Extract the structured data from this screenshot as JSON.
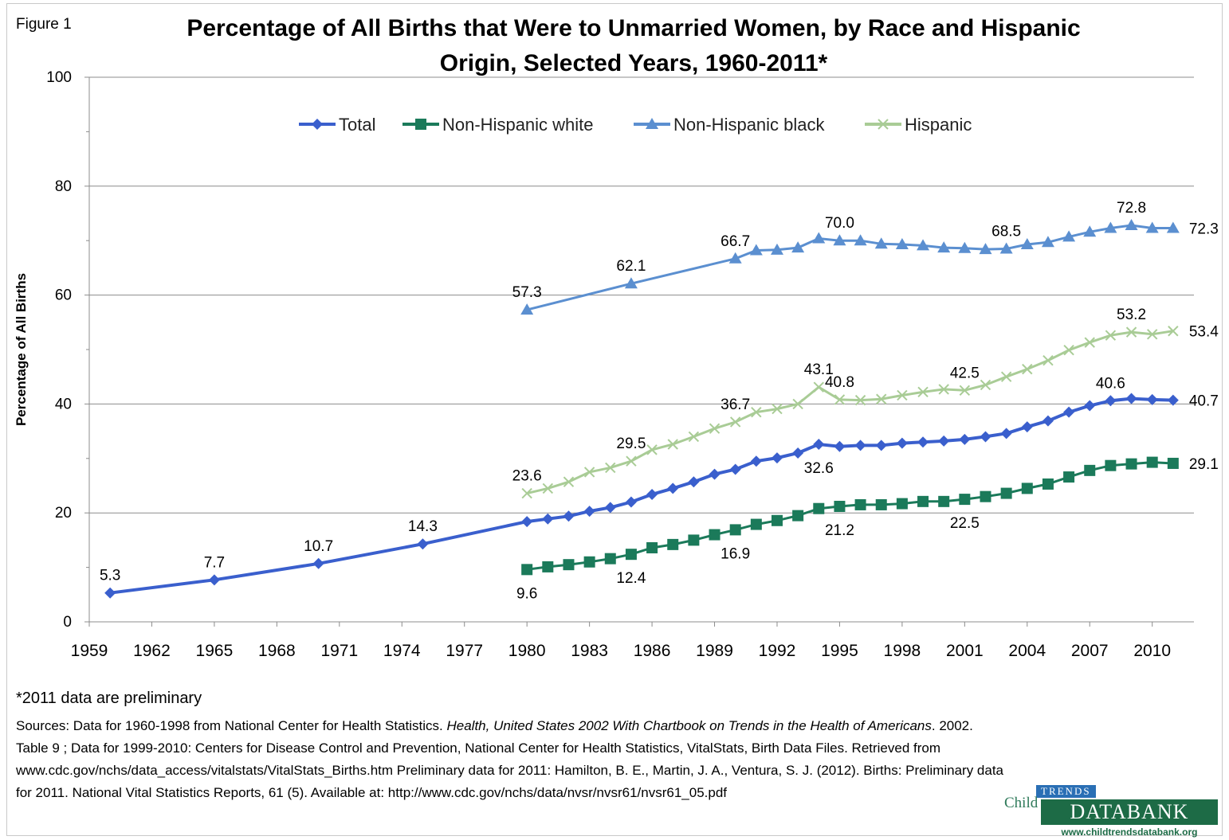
{
  "figure_label": "Figure 1",
  "title_line1": "Percentage of All Births that Were to Unmarried Women, by Race and Hispanic",
  "title_line2": "Origin, Selected Years, 1960-2011*",
  "footnote": "*2011 data are preliminary",
  "sources": {
    "p1": "Sources: Data for 1960-1998 from National Center for Health Statistics. ",
    "p1_italic": "Health, United States 2002 With Chartbook on Trends in the Health of Americans",
    "p2": ". 2002. Table 9 ; Data for 1999-2010: Centers for Disease Control and Prevention, National Center for Health Statistics, VitalStats, Birth Data Files. Retrieved from www.cdc.gov/nchs/data_access/vitalstats/VitalStats_Births.htm Preliminary data for 2011: Hamilton, B. E., Martin, J. A., Ventura, S. J. (2012). Births: Preliminary data for 2011. National Vital Statistics Reports, 61 (5). Available at: http://www.cdc.gov/nchs/data/nvsr/nvsr61/nvsr61_05.pdf"
  },
  "logo": {
    "child": "Child",
    "trends": "TRENDS",
    "databank": "DATABANK",
    "url": "www.childtrendsdatabank.org"
  },
  "chart_data": {
    "type": "line",
    "title": "Percentage of All Births that Were to Unmarried Women, by Race and Hispanic Origin, Selected Years, 1960-2011*",
    "xlabel": "",
    "ylabel": "Percentage of All Births",
    "xlim": [
      1959,
      2012
    ],
    "ylim": [
      0,
      100
    ],
    "x_ticks": [
      1959,
      1962,
      1965,
      1968,
      1971,
      1974,
      1977,
      1980,
      1983,
      1986,
      1989,
      1992,
      1995,
      1998,
      2001,
      2004,
      2007,
      2010
    ],
    "y_ticks": [
      0,
      20,
      40,
      60,
      80,
      100
    ],
    "grid": "horizontal",
    "legend_position": "top-center",
    "series": [
      {
        "name": "Total",
        "color": "#3a5fcd",
        "marker": "diamond",
        "x": [
          1960,
          1965,
          1970,
          1975,
          1980,
          1981,
          1982,
          1983,
          1984,
          1985,
          1986,
          1987,
          1988,
          1989,
          1990,
          1991,
          1992,
          1993,
          1994,
          1995,
          1996,
          1997,
          1998,
          1999,
          2000,
          2001,
          2002,
          2003,
          2004,
          2005,
          2006,
          2007,
          2008,
          2009,
          2010,
          2011
        ],
        "y": [
          5.3,
          7.7,
          10.7,
          14.3,
          18.4,
          18.9,
          19.4,
          20.3,
          21.0,
          22.0,
          23.4,
          24.5,
          25.7,
          27.1,
          28.0,
          29.5,
          30.1,
          31.0,
          32.6,
          32.2,
          32.4,
          32.4,
          32.8,
          33.0,
          33.2,
          33.5,
          34.0,
          34.6,
          35.8,
          36.9,
          38.5,
          39.7,
          40.6,
          41.0,
          40.8,
          40.7
        ],
        "labels": [
          {
            "x": 1960,
            "text": "5.3",
            "pos": "above"
          },
          {
            "x": 1965,
            "text": "7.7",
            "pos": "above"
          },
          {
            "x": 1970,
            "text": "10.7",
            "pos": "above"
          },
          {
            "x": 1975,
            "text": "14.3",
            "pos": "above"
          },
          {
            "x": 1994,
            "text": "32.6",
            "pos": "below"
          },
          {
            "x": 2008,
            "text": "40.6",
            "pos": "above"
          },
          {
            "x": 2011,
            "text": "40.7",
            "pos": "right"
          }
        ]
      },
      {
        "name": "Non-Hispanic white",
        "color": "#1b7a5a",
        "marker": "square",
        "x": [
          1980,
          1981,
          1982,
          1983,
          1984,
          1985,
          1986,
          1987,
          1988,
          1989,
          1990,
          1991,
          1992,
          1993,
          1994,
          1995,
          1996,
          1997,
          1998,
          1999,
          2000,
          2001,
          2002,
          2003,
          2004,
          2005,
          2006,
          2007,
          2008,
          2009,
          2010,
          2011
        ],
        "y": [
          9.6,
          10.1,
          10.5,
          11.0,
          11.6,
          12.4,
          13.6,
          14.2,
          15.0,
          16.0,
          16.9,
          17.9,
          18.6,
          19.5,
          20.8,
          21.2,
          21.5,
          21.5,
          21.7,
          22.1,
          22.1,
          22.5,
          23.0,
          23.6,
          24.5,
          25.3,
          26.6,
          27.8,
          28.7,
          29.0,
          29.3,
          29.1
        ],
        "labels": [
          {
            "x": 1980,
            "text": "9.6",
            "pos": "below"
          },
          {
            "x": 1985,
            "text": "12.4",
            "pos": "below"
          },
          {
            "x": 1990,
            "text": "16.9",
            "pos": "below"
          },
          {
            "x": 1995,
            "text": "21.2",
            "pos": "below"
          },
          {
            "x": 2001,
            "text": "22.5",
            "pos": "below"
          },
          {
            "x": 2011,
            "text": "29.1",
            "pos": "right"
          }
        ]
      },
      {
        "name": "Non-Hispanic black",
        "color": "#5b8fd0",
        "marker": "triangle",
        "x": [
          1980,
          1985,
          1990,
          1991,
          1992,
          1993,
          1994,
          1995,
          1996,
          1997,
          1998,
          1999,
          2000,
          2001,
          2002,
          2003,
          2004,
          2005,
          2006,
          2007,
          2008,
          2009,
          2010,
          2011
        ],
        "y": [
          57.3,
          62.1,
          66.7,
          68.2,
          68.3,
          68.7,
          70.4,
          70.0,
          70.0,
          69.4,
          69.3,
          69.1,
          68.7,
          68.6,
          68.4,
          68.5,
          69.3,
          69.7,
          70.7,
          71.6,
          72.3,
          72.8,
          72.3,
          72.3
        ],
        "labels": [
          {
            "x": 1980,
            "text": "57.3",
            "pos": "above"
          },
          {
            "x": 1985,
            "text": "62.1",
            "pos": "above"
          },
          {
            "x": 1990,
            "text": "66.7",
            "pos": "above"
          },
          {
            "x": 1995,
            "text": "70.0",
            "pos": "above"
          },
          {
            "x": 2003,
            "text": "68.5",
            "pos": "above"
          },
          {
            "x": 2009,
            "text": "72.8",
            "pos": "above"
          },
          {
            "x": 2011,
            "text": "72.3",
            "pos": "right"
          }
        ]
      },
      {
        "name": "Hispanic",
        "color": "#a9cc96",
        "marker": "x",
        "x": [
          1980,
          1981,
          1982,
          1983,
          1984,
          1985,
          1986,
          1987,
          1988,
          1989,
          1990,
          1991,
          1992,
          1993,
          1994,
          1995,
          1996,
          1997,
          1998,
          1999,
          2000,
          2001,
          2002,
          2003,
          2004,
          2005,
          2006,
          2007,
          2008,
          2009,
          2010,
          2011
        ],
        "y": [
          23.6,
          24.5,
          25.7,
          27.5,
          28.3,
          29.5,
          31.6,
          32.6,
          34.0,
          35.5,
          36.7,
          38.5,
          39.1,
          40.0,
          43.1,
          40.8,
          40.7,
          40.9,
          41.6,
          42.2,
          42.7,
          42.5,
          43.5,
          45.0,
          46.4,
          48.0,
          49.9,
          51.3,
          52.6,
          53.2,
          52.8,
          53.4
        ],
        "labels": [
          {
            "x": 1980,
            "text": "23.6",
            "pos": "above"
          },
          {
            "x": 1985,
            "text": "29.5",
            "pos": "above"
          },
          {
            "x": 1990,
            "text": "36.7",
            "pos": "above"
          },
          {
            "x": 1994,
            "text": "43.1",
            "pos": "above"
          },
          {
            "x": 1995,
            "text": "40.8",
            "pos": "above"
          },
          {
            "x": 2001,
            "text": "42.5",
            "pos": "above"
          },
          {
            "x": 2009,
            "text": "53.2",
            "pos": "above"
          },
          {
            "x": 2011,
            "text": "53.4",
            "pos": "right"
          }
        ]
      }
    ]
  }
}
